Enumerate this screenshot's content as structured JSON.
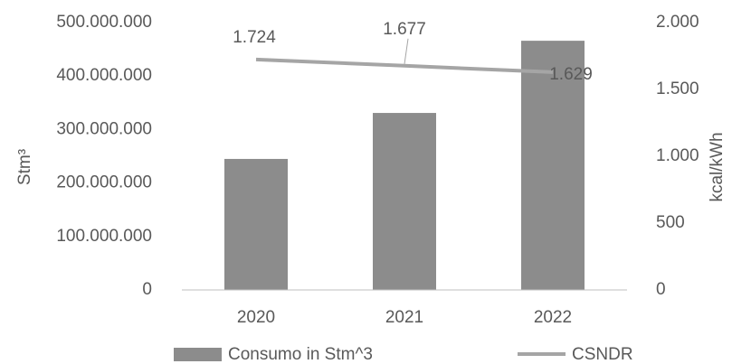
{
  "chart_data": {
    "type": "bar",
    "categories": [
      "2020",
      "2021",
      "2022"
    ],
    "series": [
      {
        "name": "Consumo in Stm^3",
        "type": "bar",
        "color": "#8c8c8c",
        "values": [
          245000000,
          331000000,
          466000000
        ]
      },
      {
        "name": "CSNDR",
        "type": "line",
        "axis": "y2",
        "color": "#a5a5a5",
        "values": [
          1724,
          1677,
          1629
        ],
        "value_labels": [
          "1.724",
          "1.677",
          "1.629"
        ]
      }
    ],
    "ylabel": "Stm³",
    "y2label": "kcal/kWh",
    "ylim": [
      0,
      500000000
    ],
    "yticks": [
      0,
      {
        "value": 100000000,
        "label": "100.000.000"
      },
      {
        "value": 200000000,
        "label": "200.000.000"
      },
      {
        "value": 300000000,
        "label": "300.000.000"
      },
      {
        "value": 400000000,
        "label": "400.000.000"
      },
      {
        "value": 500000000,
        "label": "500.000.000"
      }
    ],
    "y2lim": [
      0,
      2000
    ],
    "y2ticks": [
      0,
      500,
      {
        "value": 1000,
        "label": "1.000"
      },
      {
        "value": 1500,
        "label": "1.500"
      },
      {
        "value": 2000,
        "label": "2.000"
      }
    ],
    "grid": false,
    "legend": "bottom"
  }
}
